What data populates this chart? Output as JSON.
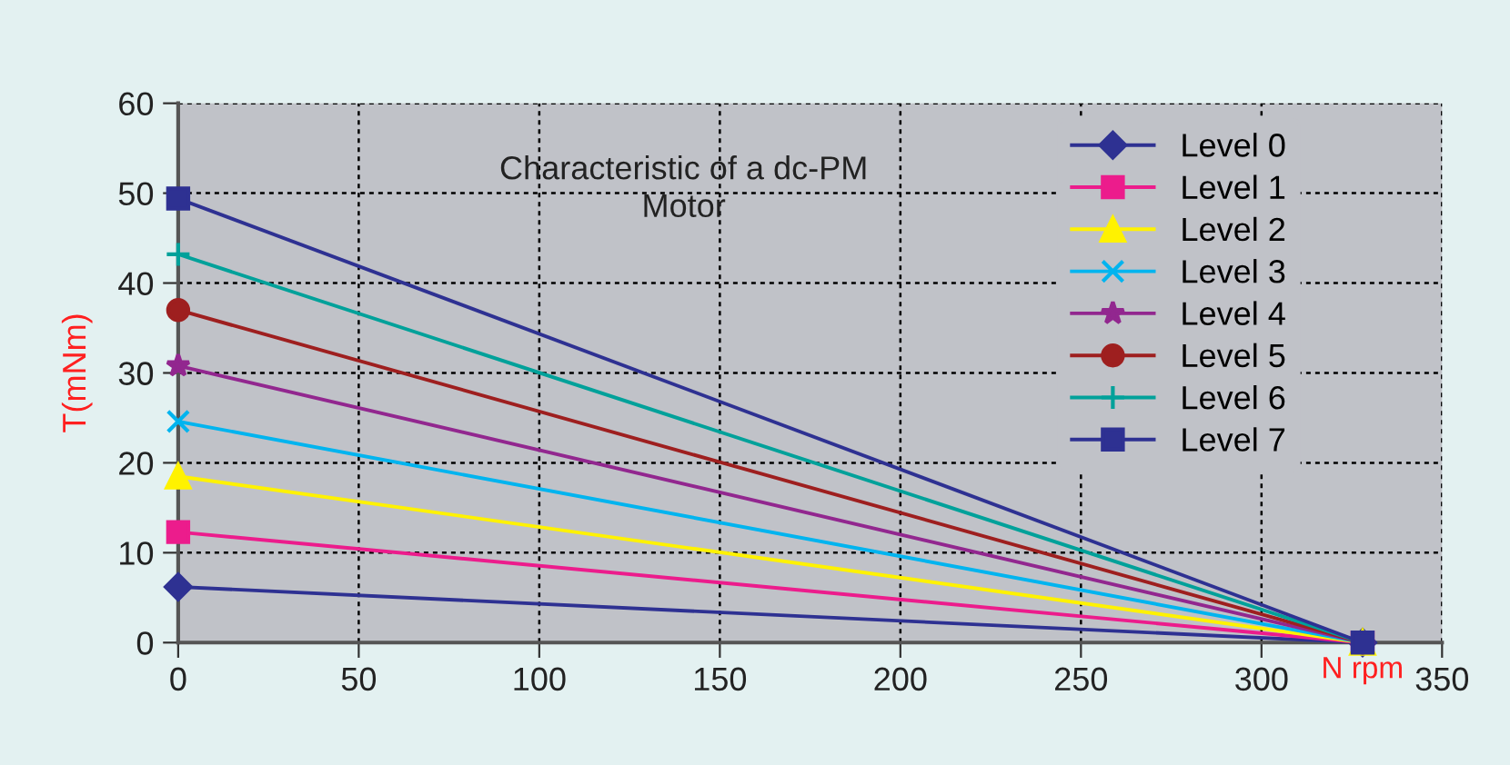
{
  "chart_data": {
    "type": "line",
    "title": "Characteristic of a dc-PM\nMotor",
    "xlabel": "N rpm",
    "ylabel": "T(mNm)",
    "xlim": [
      0,
      350
    ],
    "xticks": [
      0,
      50,
      100,
      150,
      200,
      250,
      300,
      350
    ],
    "ylim": [
      0,
      60
    ],
    "yticks": [
      0,
      10,
      20,
      30,
      40,
      50,
      60
    ],
    "grid": true,
    "x": [
      0,
      328
    ],
    "legend": "top right",
    "line_style": "solid",
    "series": [
      {
        "name": "Level 0",
        "color": "#2e3192",
        "marker": "diamond",
        "values": [
          6.2,
          0
        ]
      },
      {
        "name": "Level 1",
        "color": "#ec1c8c",
        "marker": "square",
        "values": [
          12.3,
          0
        ]
      },
      {
        "name": "Level 2",
        "color": "#fff200",
        "marker": "triangle",
        "values": [
          18.5,
          0
        ]
      },
      {
        "name": "Level 3",
        "color": "#00b4ef",
        "marker": "cross",
        "values": [
          24.6,
          0
        ]
      },
      {
        "name": "Level 4",
        "color": "#92278f",
        "marker": "star",
        "values": [
          30.8,
          0
        ]
      },
      {
        "name": "Level 5",
        "color": "#9e1f1f",
        "marker": "circle",
        "values": [
          37,
          0
        ]
      },
      {
        "name": "Level 6",
        "color": "#00a19a",
        "marker": "plus",
        "values": [
          43.2,
          0
        ]
      },
      {
        "name": "Level 7",
        "color": "#2e3192",
        "marker": "square",
        "values": [
          49.4,
          0
        ]
      }
    ]
  }
}
